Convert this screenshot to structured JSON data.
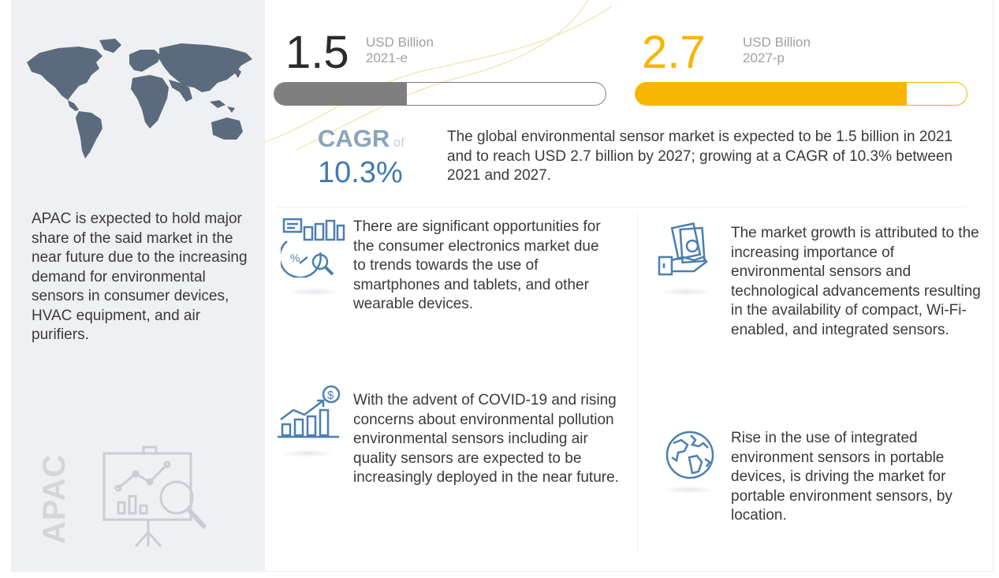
{
  "left": {
    "description": "APAC is expected to hold major share of the said market in the near future due to the increasing demand for environmental sensors in consumer devices, HVAC equipment, and air purifiers.",
    "region_label": "APAC"
  },
  "stats": [
    {
      "value": "1.5",
      "unit": "USD Billion",
      "year": "2021-e",
      "color": "#7f7f7f",
      "fill_fraction": 0.4
    },
    {
      "value": "2.7",
      "unit": "USD Billion",
      "year": "2027-p",
      "color": "#f7b500",
      "fill_fraction": 0.82
    }
  ],
  "cagr": {
    "label": "CAGR",
    "of": "of",
    "value": "10.3%",
    "summary": "The global environmental sensor market  is expected to be 1.5 billion in 2021 and to reach USD 2.7 billion by 2027; growing at a CAGR of 10.3% between 2021 and 2027."
  },
  "insights": [
    {
      "icon": "analytics-icon",
      "text": "There are significant opportunities for the consumer electronics market due to trends towards the use of smartphones and tablets, and other wearable devices."
    },
    {
      "icon": "growth-chart-icon",
      "text": "With the advent of COVID-19 and rising concerns about environmental pollution environmental sensors including air quality sensors are expected to be increasingly deployed in the near future."
    },
    {
      "icon": "money-hand-icon",
      "text": "The market growth is attributed to the increasing importance of environmental sensors and technological advancements resulting in the availability of compact, Wi-Fi-enabled, and integrated sensors."
    },
    {
      "icon": "globe-icon",
      "text": "Rise in the use of integrated environment sensors in portable devices, is driving the market for portable environment sensors, by location."
    }
  ]
}
